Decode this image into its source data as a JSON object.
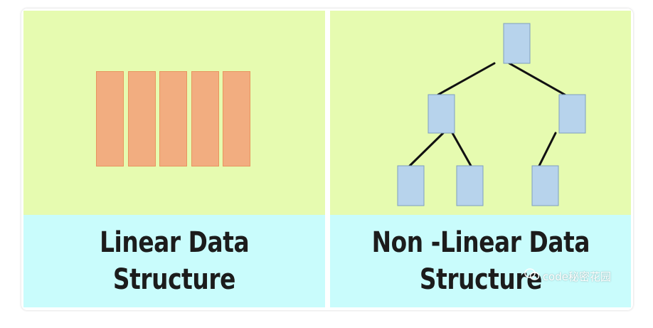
{
  "colors": {
    "panel_top": "#e6fbb0",
    "panel_bottom": "#c9fcfc",
    "block_fill": "#f2ad80",
    "node_fill": "#b7d3ec",
    "node_stroke": "#7f9fbf",
    "edge": "#111111"
  },
  "linear": {
    "caption_line1": "Linear Data",
    "caption_line2": "Structure",
    "block_count": 5
  },
  "nonlinear": {
    "caption_line1": "Non -Linear Data",
    "caption_line2": "Structure",
    "node_count": 6
  },
  "watermark": {
    "icon": "wechat-icon",
    "text": "code秘密花园"
  }
}
